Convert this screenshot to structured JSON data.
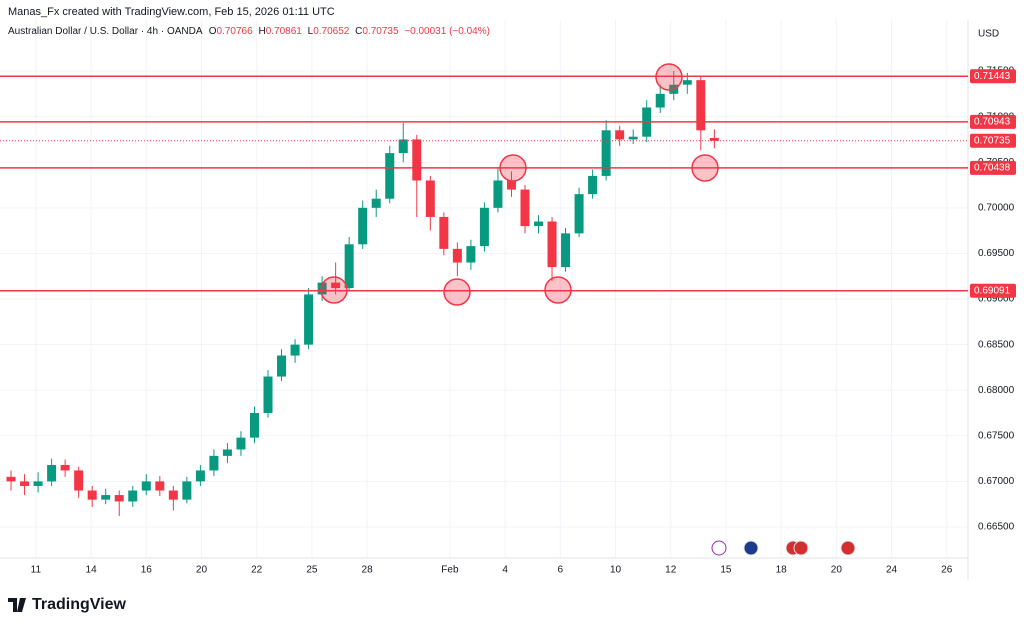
{
  "header": {
    "credit": "Manas_Fx created with TradingView.com, Feb 15, 2026 01:11 UTC",
    "symbol": "Australian Dollar / U.S. Dollar · 4h · OANDA",
    "change_label": "−0.00031 (−0.04%)",
    "o": "O",
    "h": "H",
    "l": "L",
    "c": "C",
    "currency": "USD",
    "logo": "TradingView"
  },
  "chart_data": {
    "type": "candlestick",
    "x": [
      -0.9,
      -0.41,
      0.08,
      0.57,
      1.06,
      1.55,
      2.04,
      2.53,
      3.02,
      3.51,
      4.0,
      4.49,
      4.98,
      5.47,
      5.96,
      6.45,
      6.94,
      7.43,
      7.92,
      8.41,
      8.9,
      9.39,
      9.88,
      10.37,
      10.86,
      11.35,
      11.84,
      12.33,
      12.82,
      13.31,
      13.8,
      14.29,
      14.78,
      15.27,
      15.76,
      16.25,
      16.74,
      17.23,
      17.72,
      18.21,
      18.7,
      19.19,
      19.68,
      20.17,
      20.66,
      21.15,
      21.64,
      22.13,
      22.62,
      23.11,
      23.6,
      24.09,
      24.58
    ],
    "open": [
      0.6705,
      0.67,
      0.6695,
      0.67,
      0.6718,
      0.6712,
      0.669,
      0.668,
      0.6685,
      0.6678,
      0.669,
      0.67,
      0.669,
      0.668,
      0.67,
      0.6712,
      0.6728,
      0.6735,
      0.6748,
      0.6775,
      0.6815,
      0.6838,
      0.685,
      0.6905,
      0.6918,
      0.6912,
      0.696,
      0.7,
      0.701,
      0.706,
      0.7075,
      0.703,
      0.699,
      0.6955,
      0.694,
      0.6958,
      0.7,
      0.703,
      0.702,
      0.698,
      0.6985,
      0.6935,
      0.6972,
      0.7015,
      0.7035,
      0.7085,
      0.7075,
      0.7078,
      0.711,
      0.7125,
      0.7135,
      0.714,
      0.70766
    ],
    "high": [
      0.6712,
      0.6708,
      0.671,
      0.6725,
      0.6724,
      0.6716,
      0.6695,
      0.6692,
      0.669,
      0.6695,
      0.6708,
      0.6706,
      0.6695,
      0.6705,
      0.6718,
      0.6735,
      0.6742,
      0.6755,
      0.6782,
      0.6822,
      0.6845,
      0.6856,
      0.6912,
      0.6925,
      0.694,
      0.6968,
      0.7008,
      0.702,
      0.7068,
      0.7093,
      0.708,
      0.7035,
      0.6995,
      0.6962,
      0.6965,
      0.7006,
      0.7045,
      0.704,
      0.7025,
      0.6992,
      0.699,
      0.6978,
      0.7022,
      0.7042,
      0.7096,
      0.709,
      0.7086,
      0.7118,
      0.7135,
      0.715,
      0.7148,
      0.7145,
      0.70861
    ],
    "low": [
      0.669,
      0.6685,
      0.6688,
      0.6695,
      0.6705,
      0.6682,
      0.6672,
      0.6675,
      0.6662,
      0.6672,
      0.6685,
      0.6684,
      0.6668,
      0.6676,
      0.6695,
      0.6706,
      0.672,
      0.6728,
      0.6742,
      0.677,
      0.681,
      0.683,
      0.6845,
      0.6898,
      0.6905,
      0.6908,
      0.6955,
      0.699,
      0.7005,
      0.705,
      0.699,
      0.6975,
      0.6948,
      0.6925,
      0.6932,
      0.6952,
      0.6995,
      0.7012,
      0.6972,
      0.6972,
      0.692,
      0.693,
      0.6968,
      0.701,
      0.703,
      0.7068,
      0.707,
      0.7072,
      0.7104,
      0.7118,
      0.7125,
      0.7063,
      0.70652
    ],
    "close": [
      0.67,
      0.6695,
      0.67,
      0.6718,
      0.6712,
      0.669,
      0.668,
      0.6685,
      0.6678,
      0.669,
      0.67,
      0.669,
      0.668,
      0.67,
      0.6712,
      0.6728,
      0.6735,
      0.6748,
      0.6775,
      0.6815,
      0.6838,
      0.685,
      0.6905,
      0.6918,
      0.6912,
      0.696,
      0.7,
      0.701,
      0.706,
      0.7075,
      0.703,
      0.699,
      0.6955,
      0.694,
      0.6958,
      0.7,
      0.703,
      0.702,
      0.698,
      0.6985,
      0.6935,
      0.6972,
      0.7015,
      0.7035,
      0.7085,
      0.7075,
      0.7078,
      0.711,
      0.7125,
      0.7135,
      0.714,
      0.7085,
      0.70735
    ],
    "up_color": "#089981",
    "down_color": "#f23645",
    "level_color": "#f23645",
    "levels": [
      0.71443,
      0.70943,
      0.70438,
      0.69091
    ],
    "last_price": 0.70735,
    "xlim": [
      -1.01,
      33.77
    ],
    "xticks": [
      {
        "value": 0,
        "label": "11"
      },
      {
        "value": 2,
        "label": "14"
      },
      {
        "value": 4,
        "label": "16"
      },
      {
        "value": 6,
        "label": "20"
      },
      {
        "value": 8,
        "label": "22"
      },
      {
        "value": 10,
        "label": "25"
      },
      {
        "value": 12,
        "label": "28"
      },
      {
        "value": 15,
        "label": "Feb"
      },
      {
        "value": 17,
        "label": "4"
      },
      {
        "value": 19,
        "label": "6"
      },
      {
        "value": 21,
        "label": "10"
      },
      {
        "value": 23,
        "label": "12"
      },
      {
        "value": 25,
        "label": "15"
      },
      {
        "value": 27,
        "label": "18"
      },
      {
        "value": 29,
        "label": "20"
      },
      {
        "value": 31,
        "label": "24"
      },
      {
        "value": 33,
        "label": "26"
      }
    ],
    "ylim": [
      0.6616,
      0.7195
    ],
    "yticks": [
      {
        "value": 0.665,
        "label": "0.66500"
      },
      {
        "value": 0.67,
        "label": "0.67000"
      },
      {
        "value": 0.675,
        "label": "0.67500"
      },
      {
        "value": 0.68,
        "label": "0.68000"
      },
      {
        "value": 0.685,
        "label": "0.68500"
      },
      {
        "value": 0.69,
        "label": "0.69000"
      },
      {
        "value": 0.695,
        "label": "0.69500"
      },
      {
        "value": 0.7,
        "label": "0.70000"
      },
      {
        "value": 0.705,
        "label": "0.70500"
      },
      {
        "value": 0.71,
        "label": "0.71000"
      },
      {
        "value": 0.715,
        "label": "0.71500"
      }
    ],
    "grid": true
  }
}
